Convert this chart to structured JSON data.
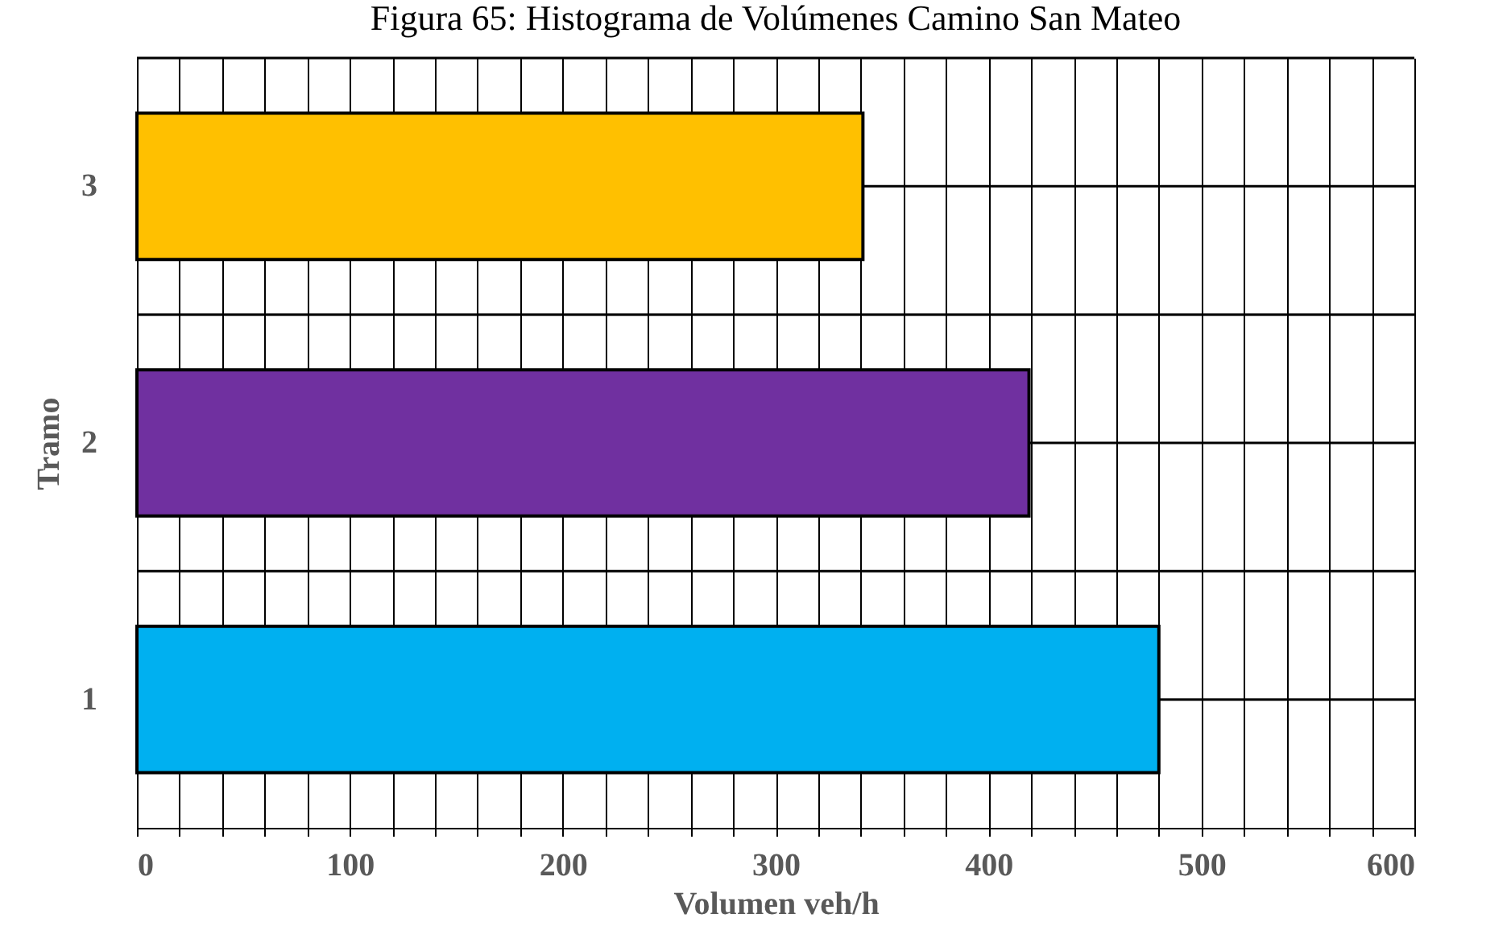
{
  "chart_data": {
    "type": "bar",
    "orientation": "horizontal",
    "title": "Figura 65: Histograma de Volúmenes Camino San Mateo",
    "xlabel": "Volumen veh/h",
    "ylabel": "Tramo",
    "categories": [
      "3",
      "2",
      "1"
    ],
    "values": [
      341,
      419,
      480
    ],
    "colors": [
      "#ffc000",
      "#7030a0",
      "#00b0f0"
    ],
    "xlim": [
      0,
      600
    ],
    "xticks": [
      0,
      {
        "value": 20,
        "label": null
      },
      {
        "value": 40,
        "label": null
      },
      {
        "value": 60,
        "label": null
      },
      {
        "value": 80,
        "label": null
      },
      100,
      {
        "value": 120,
        "label": null
      },
      {
        "value": 140,
        "label": null
      },
      {
        "value": 160,
        "label": null
      },
      {
        "value": 180,
        "label": null
      },
      200,
      {
        "value": 220,
        "label": null
      },
      {
        "value": 240,
        "label": null
      },
      {
        "value": 260,
        "label": null
      },
      {
        "value": 280,
        "label": null
      },
      300,
      {
        "value": 320,
        "label": null
      },
      {
        "value": 340,
        "label": null
      },
      {
        "value": 360,
        "label": null
      },
      {
        "value": 380,
        "label": null
      },
      400,
      {
        "value": 420,
        "label": null
      },
      {
        "value": 440,
        "label": null
      },
      {
        "value": 460,
        "label": null
      },
      {
        "value": 480,
        "label": null
      },
      500,
      {
        "value": 520,
        "label": null
      },
      {
        "value": 540,
        "label": null
      },
      {
        "value": 560,
        "label": null
      },
      {
        "value": 580,
        "label": null
      },
      600
    ],
    "grid": true
  }
}
